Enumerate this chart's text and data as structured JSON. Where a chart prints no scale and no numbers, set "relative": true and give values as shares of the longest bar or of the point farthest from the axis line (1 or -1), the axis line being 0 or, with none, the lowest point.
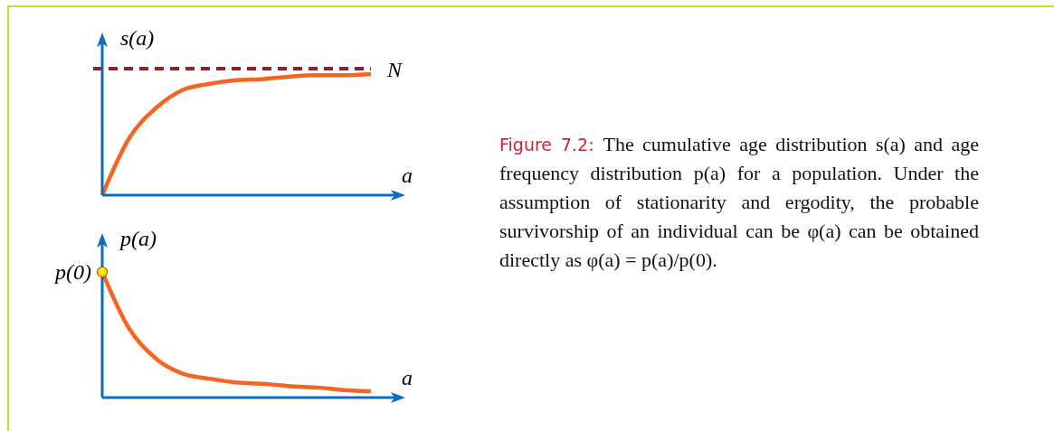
{
  "chart_data": [
    {
      "type": "line",
      "relative": true,
      "xlabel": "a",
      "ylabel": "s(a)",
      "categories": [
        null,
        null,
        null,
        null,
        null,
        null,
        null,
        null,
        null,
        null,
        null
      ],
      "series": [
        {
          "color": "#f26522",
          "values": [
            0,
            0.47,
            0.72,
            0.87,
            0.92,
            0.95,
            0.96,
            0.98,
            0.99,
            0.99,
            1
          ]
        }
      ],
      "ref_lines": [
        {
          "axis": "y",
          "value": 1.045,
          "label": "N",
          "color": "#9b1b1e",
          "line_style": "dashed"
        }
      ]
    },
    {
      "type": "line",
      "relative": true,
      "xlabel": "a",
      "ylabel": "p(a)",
      "categories": [
        null,
        null,
        null,
        null,
        null,
        null,
        null,
        null,
        null,
        null,
        null
      ],
      "series": [
        {
          "color": "#f26522",
          "values": [
            1,
            0.55,
            0.31,
            0.19,
            0.15,
            0.12,
            0.11,
            0.09,
            0.08,
            0.06,
            0.05
          ]
        },
        {
          "type": "scatter",
          "color": "#ffec00",
          "marker": "circle",
          "values": [
            1,
            null,
            null,
            null,
            null,
            null,
            null,
            null,
            null,
            null,
            null
          ]
        }
      ],
      "annotations": [
        "p(0)"
      ]
    },
    {
      "type": "other",
      "title": "Figure 7.2:",
      "annotations": [
        "The cumulative age distribution s(a) and age frequency distribution p(a) for a population. Under the assumption of stationarity and ergodity, the probable survivorship of an individual can be φ(a) can be obtained directly as φ(a) = p(a)/p(0)."
      ]
    }
  ]
}
